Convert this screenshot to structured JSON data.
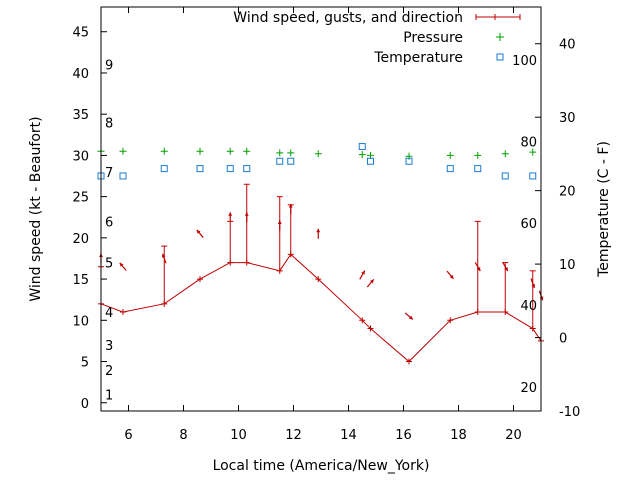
{
  "chart_data": {
    "type": "line",
    "xlabel": "Local time (America/New_York)",
    "ylabel_left": "Wind speed (kt - Beaufort)",
    "ylabel_right": "Temperature (C - F)",
    "xlim": [
      5,
      21
    ],
    "ylim_left": [
      -1,
      48
    ],
    "ylim_right": [
      -10,
      45
    ],
    "x_ticks": [
      6,
      8,
      10,
      12,
      14,
      16,
      18,
      20
    ],
    "y_ticks_left": [
      0,
      5,
      10,
      15,
      20,
      25,
      30,
      35,
      40,
      45
    ],
    "y_ticks_right": [
      -10,
      0,
      10,
      20,
      30,
      40
    ],
    "beaufort_labels": [
      {
        "label": "1",
        "value": 1
      },
      {
        "label": "2",
        "value": 4
      },
      {
        "label": "3",
        "value": 7
      },
      {
        "label": "4",
        "value": 11
      },
      {
        "label": "5",
        "value": 17
      },
      {
        "label": "6",
        "value": 22
      },
      {
        "label": "7",
        "value": 28
      },
      {
        "label": "8",
        "value": 34
      },
      {
        "label": "9",
        "value": 41
      }
    ],
    "fahrenheit_labels": [
      {
        "label": "20",
        "value": -6.7
      },
      {
        "label": "40",
        "value": 4.4
      },
      {
        "label": "60",
        "value": 15.6
      },
      {
        "label": "80",
        "value": 26.7
      },
      {
        "label": "100",
        "value": 37.8
      }
    ],
    "legend": {
      "position": "top-right",
      "entries": [
        {
          "label": "Wind speed, gusts, and direction",
          "color": "#c00000",
          "marker": "errorbar"
        },
        {
          "label": "Pressure",
          "color": "#00a000",
          "marker": "plus"
        },
        {
          "label": "Temperature",
          "color": "#1a7bd4",
          "marker": "square"
        }
      ]
    },
    "series": {
      "wind": {
        "color": "#c00000",
        "points": [
          {
            "x": 5.0,
            "speed": 12,
            "gust": 16.5,
            "dir": 180
          },
          {
            "x": 5.8,
            "speed": 11,
            "gust": 11,
            "dir": 140
          },
          {
            "x": 7.3,
            "speed": 12,
            "gust": 19,
            "dir": 160
          },
          {
            "x": 8.6,
            "speed": 15,
            "gust": 15,
            "dir": 140
          },
          {
            "x": 9.7,
            "speed": 17,
            "gust": 22,
            "dir": 180
          },
          {
            "x": 10.3,
            "speed": 17,
            "gust": 26.5,
            "dir": 180
          },
          {
            "x": 11.5,
            "speed": 16,
            "gust": 25,
            "dir": 180
          },
          {
            "x": 11.9,
            "speed": 18,
            "gust": 24,
            "dir": 180
          },
          {
            "x": 12.9,
            "speed": 15,
            "gust": 15,
            "dir": 180
          },
          {
            "x": 14.5,
            "speed": 10,
            "gust": 10,
            "dir": 210
          },
          {
            "x": 14.8,
            "speed": 9,
            "gust": 9,
            "dir": 220
          },
          {
            "x": 16.2,
            "speed": 5,
            "gust": 5,
            "dir": 310
          },
          {
            "x": 17.7,
            "speed": 10,
            "gust": 10,
            "dir": 320
          },
          {
            "x": 18.7,
            "speed": 11,
            "gust": 22,
            "dir": 330
          },
          {
            "x": 19.7,
            "speed": 11,
            "gust": 17,
            "dir": 330
          },
          {
            "x": 20.7,
            "speed": 9,
            "gust": 16,
            "dir": 340
          },
          {
            "x": 21.0,
            "speed": 7.5,
            "gust": 7.5,
            "dir": 340
          }
        ]
      },
      "pressure": {
        "color": "#00a000",
        "points": [
          {
            "x": 5.0,
            "y": 30.5
          },
          {
            "x": 5.8,
            "y": 30.5
          },
          {
            "x": 7.3,
            "y": 30.5
          },
          {
            "x": 8.6,
            "y": 30.5
          },
          {
            "x": 9.7,
            "y": 30.5
          },
          {
            "x": 10.3,
            "y": 30.5
          },
          {
            "x": 11.5,
            "y": 30.3
          },
          {
            "x": 11.9,
            "y": 30.3
          },
          {
            "x": 12.9,
            "y": 30.2
          },
          {
            "x": 14.5,
            "y": 30.1
          },
          {
            "x": 14.8,
            "y": 30.0
          },
          {
            "x": 16.2,
            "y": 29.9
          },
          {
            "x": 17.7,
            "y": 30.0
          },
          {
            "x": 18.7,
            "y": 30.0
          },
          {
            "x": 19.7,
            "y": 30.2
          },
          {
            "x": 20.7,
            "y": 30.4
          }
        ]
      },
      "temperature": {
        "color": "#1a7bd4",
        "points": [
          {
            "x": 5.0,
            "y": 22
          },
          {
            "x": 5.8,
            "y": 22
          },
          {
            "x": 7.3,
            "y": 23
          },
          {
            "x": 8.6,
            "y": 23
          },
          {
            "x": 9.7,
            "y": 23
          },
          {
            "x": 10.3,
            "y": 23
          },
          {
            "x": 11.5,
            "y": 24
          },
          {
            "x": 11.9,
            "y": 24
          },
          {
            "x": 14.5,
            "y": 26
          },
          {
            "x": 14.8,
            "y": 24
          },
          {
            "x": 16.2,
            "y": 24
          },
          {
            "x": 17.7,
            "y": 23
          },
          {
            "x": 18.7,
            "y": 23
          },
          {
            "x": 19.7,
            "y": 22
          },
          {
            "x": 20.7,
            "y": 22
          }
        ]
      }
    }
  }
}
